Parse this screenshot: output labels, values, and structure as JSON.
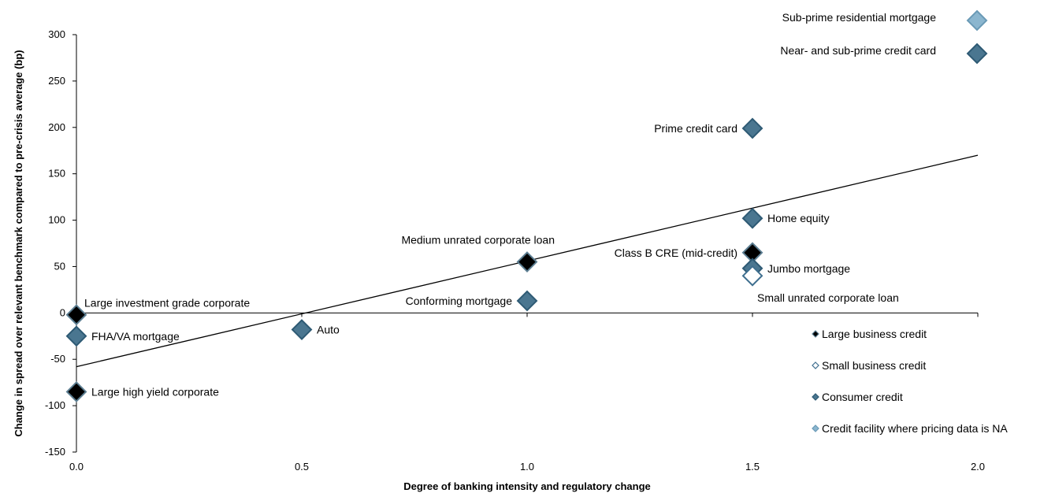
{
  "chart_data": {
    "type": "scatter",
    "xlabel": "Degree of banking intensity and regulatory change",
    "ylabel": "Change in spread over relevant benchmark compared to pre-crisis average (bp)",
    "xlim": [
      0,
      2
    ],
    "ylim": [
      -150,
      300
    ],
    "x_ticks": [
      "0.0",
      "0.5",
      "1.0",
      "1.5",
      "2.0"
    ],
    "y_ticks": [
      "300",
      "250",
      "200",
      "150",
      "100",
      "50",
      "0",
      "-50",
      "-100",
      "-150"
    ],
    "grid": false,
    "trendline": {
      "x0": 0,
      "y0": -58,
      "x1": 2,
      "y1": 170
    },
    "categories": {
      "large": {
        "name": "Large business credit",
        "fill": "#000000",
        "stroke": "#5b7d91"
      },
      "small": {
        "name": "Small business credit",
        "fill": "#ffffff",
        "stroke": "#3f6f8f"
      },
      "consumer": {
        "name": "Consumer credit",
        "fill": "#4a7690",
        "stroke": "#2e5a74"
      },
      "na": {
        "name": "Credit facility where pricing data is NA",
        "fill": "#8bb6cf",
        "stroke": "#6a9ab6"
      }
    },
    "points": [
      {
        "label": "Large investment grade corporate",
        "x": 0.0,
        "y": -2,
        "cat": "large",
        "lpos": "above-right"
      },
      {
        "label": "FHA/VA mortgage",
        "x": 0.0,
        "y": -25,
        "cat": "consumer",
        "lpos": "right"
      },
      {
        "label": "Large high yield corporate",
        "x": 0.0,
        "y": -85,
        "cat": "large",
        "lpos": "right"
      },
      {
        "label": "Auto",
        "x": 0.5,
        "y": -18,
        "cat": "consumer",
        "lpos": "right"
      },
      {
        "label": "Medium unrated corporate loan",
        "x": 1.0,
        "y": 55,
        "cat": "large",
        "lpos": "above-left"
      },
      {
        "label": "Conforming mortgage",
        "x": 1.0,
        "y": 13,
        "cat": "consumer",
        "lpos": "left"
      },
      {
        "label": "Prime credit card",
        "x": 1.5,
        "y": 199,
        "cat": "consumer",
        "lpos": "left"
      },
      {
        "label": "Home equity",
        "x": 1.5,
        "y": 102,
        "cat": "consumer",
        "lpos": "right"
      },
      {
        "label": "Class B CRE (mid-credit)",
        "x": 1.5,
        "y": 65,
        "cat": "large",
        "lpos": "left"
      },
      {
        "label": "Jumbo mortgage",
        "x": 1.5,
        "y": 48,
        "cat": "consumer",
        "lpos": "right"
      },
      {
        "label": "Small unrated corporate loan",
        "x": 1.5,
        "y": 40,
        "cat": "small",
        "lpos": "below-right"
      }
    ],
    "top_legend": [
      {
        "label": "Sub-prime residential mortgage",
        "cat": "na"
      },
      {
        "label": "Near- and sub-prime credit card",
        "cat": "consumer"
      }
    ],
    "legend_placement": "bottom-right"
  }
}
